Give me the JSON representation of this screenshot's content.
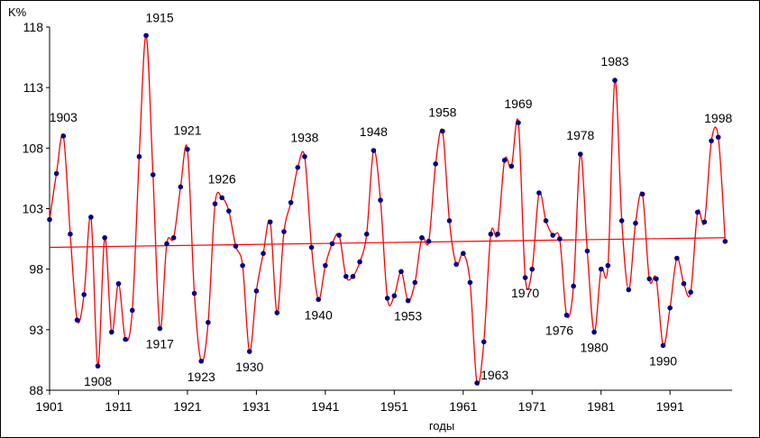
{
  "chart_data": {
    "type": "line",
    "title": "",
    "ylabel": "K%",
    "xlabel": "годы",
    "xlim": [
      1901,
      2000
    ],
    "ylim": [
      88,
      118
    ],
    "xticks": [
      1901,
      1911,
      1921,
      1931,
      1941,
      1951,
      1961,
      1971,
      1981,
      1991
    ],
    "yticks": [
      88,
      93,
      98,
      103,
      108,
      113,
      118
    ],
    "grid": false,
    "legend": "none",
    "series": [
      {
        "color": "#ff0000",
        "marker_color": "#000080",
        "x": [
          1901,
          1902,
          1903,
          1904,
          1905,
          1906,
          1907,
          1908,
          1909,
          1910,
          1911,
          1912,
          1913,
          1914,
          1915,
          1916,
          1917,
          1918,
          1919,
          1920,
          1921,
          1922,
          1923,
          1924,
          1925,
          1926,
          1927,
          1928,
          1929,
          1930,
          1931,
          1932,
          1933,
          1934,
          1935,
          1936,
          1937,
          1938,
          1939,
          1940,
          1941,
          1942,
          1943,
          1944,
          1945,
          1946,
          1947,
          1948,
          1949,
          1950,
          1951,
          1952,
          1953,
          1954,
          1955,
          1956,
          1957,
          1958,
          1959,
          1960,
          1961,
          1962,
          1963,
          1964,
          1965,
          1966,
          1967,
          1968,
          1969,
          1970,
          1971,
          1972,
          1973,
          1974,
          1975,
          1976,
          1977,
          1978,
          1979,
          1980,
          1981,
          1982,
          1983,
          1984,
          1985,
          1986,
          1987,
          1988,
          1989,
          1990,
          1991,
          1992,
          1993,
          1994,
          1995,
          1996,
          1997,
          1998,
          1999
        ],
        "y": [
          102.1,
          105.9,
          109.0,
          100.9,
          93.8,
          95.9,
          102.3,
          90.0,
          100.6,
          92.8,
          96.8,
          92.2,
          94.6,
          107.3,
          117.3,
          105.8,
          93.1,
          100.1,
          100.6,
          104.8,
          107.9,
          96.0,
          90.4,
          93.6,
          103.4,
          103.9,
          102.8,
          99.9,
          98.3,
          91.2,
          96.2,
          99.3,
          101.9,
          94.4,
          101.1,
          103.5,
          106.4,
          107.3,
          99.8,
          95.5,
          98.3,
          100.1,
          100.8,
          97.4,
          97.4,
          98.6,
          100.9,
          107.8,
          103.7,
          95.6,
          95.8,
          97.8,
          95.4,
          96.9,
          100.6,
          100.3,
          106.7,
          109.4,
          102.0,
          98.4,
          99.3,
          96.9,
          88.6,
          92.0,
          100.9,
          100.9,
          107.0,
          106.5,
          110.1,
          97.3,
          98.0,
          104.3,
          102.0,
          100.8,
          100.5,
          94.2,
          96.6,
          107.5,
          99.5,
          92.8,
          98.0,
          98.3,
          113.6,
          102.0,
          96.3,
          101.8,
          104.2,
          97.2,
          97.2,
          91.7,
          94.8,
          98.9,
          96.8,
          96.1,
          102.7,
          101.9,
          108.6,
          108.9,
          100.3
        ]
      }
    ],
    "trend": {
      "color": "#ff0000",
      "x": [
        1901,
        1999
      ],
      "y": [
        99.8,
        100.6
      ]
    },
    "annotations": [
      {
        "label": "1903",
        "x": 1903,
        "y": 109.0,
        "pos": "above"
      },
      {
        "label": "1908",
        "x": 1908,
        "y": 90.0,
        "pos": "below"
      },
      {
        "label": "1915",
        "x": 1915,
        "y": 117.3,
        "pos": "above-right"
      },
      {
        "label": "1917",
        "x": 1917,
        "y": 93.1,
        "pos": "below"
      },
      {
        "label": "1921",
        "x": 1921,
        "y": 107.9,
        "pos": "above"
      },
      {
        "label": "1923",
        "x": 1923,
        "y": 90.4,
        "pos": "below"
      },
      {
        "label": "1926",
        "x": 1926,
        "y": 103.9,
        "pos": "above"
      },
      {
        "label": "1930",
        "x": 1930,
        "y": 91.2,
        "pos": "below"
      },
      {
        "label": "1938",
        "x": 1938,
        "y": 107.3,
        "pos": "above"
      },
      {
        "label": "1940",
        "x": 1940,
        "y": 95.5,
        "pos": "below"
      },
      {
        "label": "1948",
        "x": 1948,
        "y": 107.8,
        "pos": "above"
      },
      {
        "label": "1953",
        "x": 1953,
        "y": 95.4,
        "pos": "below"
      },
      {
        "label": "1958",
        "x": 1958,
        "y": 109.4,
        "pos": "above"
      },
      {
        "label": "1963",
        "x": 1963,
        "y": 88.6,
        "pos": "right"
      },
      {
        "label": "1969",
        "x": 1969,
        "y": 110.1,
        "pos": "above"
      },
      {
        "label": "1970",
        "x": 1970,
        "y": 97.3,
        "pos": "below"
      },
      {
        "label": "1976",
        "x": 1976,
        "y": 94.2,
        "pos": "below-left"
      },
      {
        "label": "1978",
        "x": 1978,
        "y": 107.5,
        "pos": "above"
      },
      {
        "label": "1980",
        "x": 1980,
        "y": 92.8,
        "pos": "below"
      },
      {
        "label": "1983",
        "x": 1983,
        "y": 113.6,
        "pos": "above"
      },
      {
        "label": "1990",
        "x": 1990,
        "y": 91.7,
        "pos": "below"
      },
      {
        "label": "1998",
        "x": 1998,
        "y": 108.9,
        "pos": "above"
      }
    ]
  }
}
